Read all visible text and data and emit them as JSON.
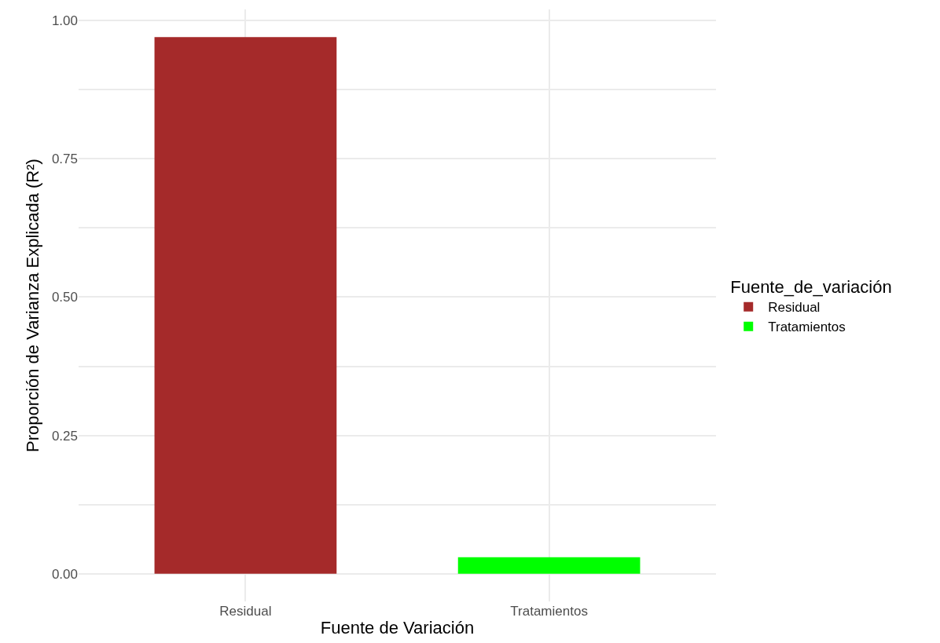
{
  "chart_data": {
    "type": "bar",
    "xlabel": "Fuente de Variación",
    "ylabel": "Proporción de Varianza Explicada (R²)",
    "legend_title": "Fuente_de_variación",
    "categories": [
      "Residual",
      "Tratamientos"
    ],
    "series": [
      {
        "name": "Residual",
        "color": "#a52a2a",
        "values": [
          0.97,
          null
        ]
      },
      {
        "name": "Tratamientos",
        "color": "#00ff00",
        "values": [
          null,
          0.03
        ]
      }
    ],
    "ylim": [
      -0.05,
      1.02
    ],
    "yticks": [
      {
        "value": 0,
        "label": "0.00"
      },
      {
        "value": 0.125,
        "label": null
      },
      {
        "value": 0.25,
        "label": "0.25"
      },
      {
        "value": 0.375,
        "label": null
      },
      {
        "value": 0.5,
        "label": "0.50"
      },
      {
        "value": 0.625,
        "label": null
      },
      {
        "value": 0.75,
        "label": "0.75"
      },
      {
        "value": 0.875,
        "label": null
      },
      {
        "value": 1,
        "label": "1.00"
      }
    ],
    "grid": true,
    "legend": "right"
  }
}
